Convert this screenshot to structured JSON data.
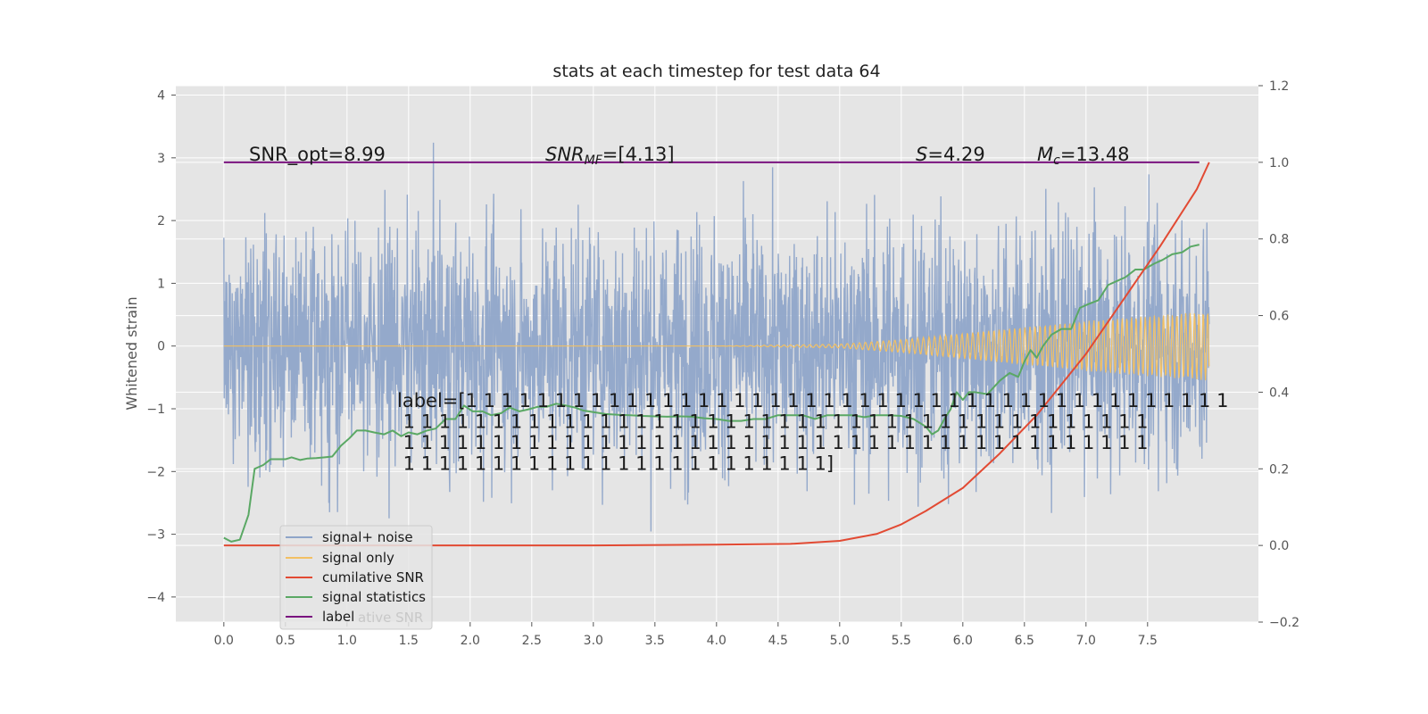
{
  "chart_data": {
    "type": "line",
    "title": "stats at each timestep for test data 64",
    "ylabel": "Whitened strain",
    "xlabel": "",
    "grid": true,
    "background": "#e5e5e5",
    "xlim": [
      -0.39,
      8.4
    ],
    "ylim_left": [
      -4.4,
      4.15
    ],
    "ylim_right": [
      -0.2,
      1.2
    ],
    "x_ticks": [
      "0.0",
      "0.5",
      "1.0",
      "1.5",
      "2.0",
      "2.5",
      "3.0",
      "3.5",
      "4.0",
      "4.5",
      "5.0",
      "5.5",
      "6.0",
      "6.5",
      "7.0",
      "7.5"
    ],
    "y_ticks_left": [
      "−4",
      "−3",
      "−2",
      "−1",
      "0",
      "1",
      "2",
      "3",
      "4"
    ],
    "y_ticks_right": [
      "−0.2",
      "0.0",
      "0.2",
      "0.4",
      "0.6",
      "0.8",
      "1.0",
      "1.2"
    ],
    "legend": {
      "location": "lower-left",
      "entries": [
        {
          "name": "signal+ noise",
          "color": "#8fa5c9"
        },
        {
          "name": "signal only",
          "color": "#f2c063"
        },
        {
          "name": "cumilative SNR",
          "color": "#e24a33"
        },
        {
          "name": "signal statistics",
          "color": "#5aa864"
        },
        {
          "name": "label",
          "color": "#7a137f"
        }
      ],
      "ghost_text": "ative SNR"
    },
    "annotations": {
      "snr_opt": "SNR_opt=8.99",
      "snr_mf_name": "SNR",
      "snr_mf_sub": "MF",
      "snr_mf_value": "=[4.13]",
      "s_name": "S",
      "s_value": "=4.29",
      "mc_name": "M",
      "mc_sub": "c",
      "mc_value": "=13.48",
      "label_lines": [
        "label=[1 1 1 1 1 1 1 1 1 1 1 1 1 1 1 1 1 1 1 1 1 1 1 1 1 1 1 1 1 1 1 1 1 1 1 1 1 1 1 1 1 1 1",
        " 1 1 1 1 1 1 1 1 1 1 1 1 1 1 1 1 1 1 1 1 1 1 1 1 1 1 1 1 1 1 1 1 1 1 1 1 1 1 1 1 1 1",
        " 1 1 1 1 1 1 1 1 1 1 1 1 1 1 1 1 1 1 1 1 1 1 1 1 1 1 1 1 1 1 1 1 1 1 1 1 1 1 1 1 1 1",
        " 1 1 1 1 1 1 1 1 1 1 1 1 1 1 1 1 1 1 1 1 1 1 1 1]"
      ]
    },
    "series": [
      {
        "name": "signal+ noise",
        "axis": "left",
        "note": "dense noisy whitened strain, roughly within [-4, 4], t from 0 to 8.0"
      },
      {
        "name": "signal only",
        "axis": "left",
        "chirp_t": [
          0.0,
          4.0,
          5.0,
          5.5,
          6.0,
          6.5,
          7.0,
          7.5,
          8.0
        ],
        "chirp_amplitude": [
          0.0,
          0.0,
          0.03,
          0.1,
          0.2,
          0.3,
          0.4,
          0.48,
          0.55
        ]
      },
      {
        "name": "cumilative SNR",
        "axis": "right",
        "x": [
          0.0,
          1.0,
          2.0,
          3.0,
          4.0,
          4.6,
          5.0,
          5.3,
          5.5,
          5.7,
          6.0,
          6.3,
          6.6,
          7.0,
          7.3,
          7.6,
          7.9,
          8.0
        ],
        "y": [
          0.0,
          0.0,
          0.0,
          0.0,
          0.002,
          0.004,
          0.012,
          0.03,
          0.055,
          0.09,
          0.15,
          0.24,
          0.34,
          0.5,
          0.64,
          0.78,
          0.93,
          1.0
        ]
      },
      {
        "name": "signal statistics",
        "axis": "right",
        "x": [
          0.0,
          0.06,
          0.13,
          0.2,
          0.25,
          0.32,
          0.38,
          0.44,
          0.5,
          0.55,
          0.62,
          0.68,
          0.75,
          0.82,
          0.88,
          0.95,
          1.02,
          1.08,
          1.15,
          1.22,
          1.3,
          1.37,
          1.44,
          1.5,
          1.57,
          1.65,
          1.72,
          1.8,
          1.88,
          1.95,
          2.02,
          2.1,
          2.17,
          2.25,
          2.32,
          2.4,
          2.47,
          2.55,
          2.62,
          2.7,
          2.78,
          2.85,
          2.92,
          3.0,
          3.1,
          3.2,
          3.3,
          3.4,
          3.5,
          3.6,
          3.7,
          3.8,
          3.9,
          4.0,
          4.1,
          4.2,
          4.3,
          4.4,
          4.5,
          4.6,
          4.7,
          4.8,
          4.9,
          5.0,
          5.1,
          5.2,
          5.3,
          5.4,
          5.5,
          5.6,
          5.7,
          5.75,
          5.8,
          5.85,
          5.9,
          5.95,
          6.0,
          6.05,
          6.1,
          6.2,
          6.3,
          6.38,
          6.45,
          6.5,
          6.55,
          6.6,
          6.65,
          6.72,
          6.8,
          6.88,
          6.95,
          7.02,
          7.1,
          7.18,
          7.25,
          7.32,
          7.4,
          7.47,
          7.55,
          7.62,
          7.7,
          7.78,
          7.85,
          7.92
        ],
        "y": [
          0.02,
          0.01,
          0.015,
          0.08,
          0.2,
          0.21,
          0.225,
          0.225,
          0.225,
          0.23,
          0.223,
          0.227,
          0.228,
          0.23,
          0.232,
          0.26,
          0.28,
          0.3,
          0.3,
          0.295,
          0.29,
          0.3,
          0.285,
          0.295,
          0.29,
          0.3,
          0.305,
          0.33,
          0.33,
          0.365,
          0.35,
          0.35,
          0.34,
          0.345,
          0.36,
          0.35,
          0.355,
          0.362,
          0.362,
          0.37,
          0.365,
          0.36,
          0.352,
          0.348,
          0.343,
          0.341,
          0.34,
          0.338,
          0.337,
          0.336,
          0.337,
          0.336,
          0.332,
          0.33,
          0.325,
          0.325,
          0.33,
          0.33,
          0.34,
          0.34,
          0.34,
          0.33,
          0.34,
          0.34,
          0.34,
          0.335,
          0.34,
          0.34,
          0.338,
          0.33,
          0.31,
          0.29,
          0.3,
          0.33,
          0.355,
          0.4,
          0.38,
          0.4,
          0.4,
          0.395,
          0.43,
          0.45,
          0.44,
          0.48,
          0.51,
          0.49,
          0.52,
          0.55,
          0.565,
          0.565,
          0.62,
          0.63,
          0.64,
          0.68,
          0.69,
          0.7,
          0.72,
          0.72,
          0.735,
          0.745,
          0.76,
          0.765,
          0.78,
          0.785
        ]
      },
      {
        "name": "label",
        "axis": "right",
        "x": [
          0.0,
          7.92
        ],
        "y": [
          1.0,
          1.0
        ]
      }
    ]
  }
}
